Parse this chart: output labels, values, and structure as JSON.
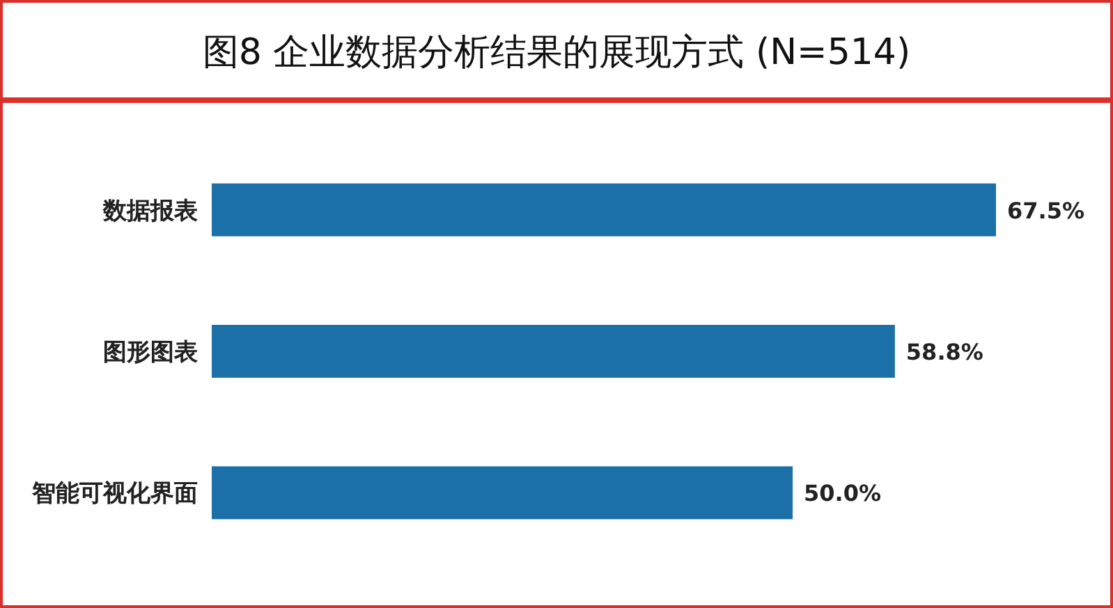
{
  "chart_data": {
    "type": "bar",
    "orientation": "horizontal",
    "title": "图8 企业数据分析结果的展现方式 (N=514)",
    "categories": [
      "数据报表",
      "图形图表",
      "智能可视化界面"
    ],
    "values": [
      67.5,
      58.8,
      50.0
    ],
    "value_labels": [
      "67.5%",
      "58.8%",
      "50.0%"
    ],
    "color": "#1b71a7"
  }
}
